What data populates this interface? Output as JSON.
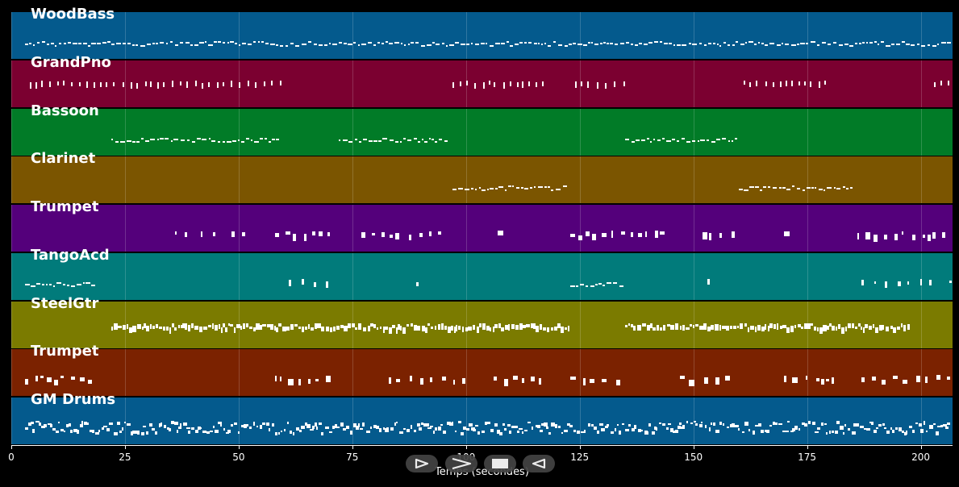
{
  "tracks": [
    {
      "name": "WoodBass",
      "color": "#045a8d"
    },
    {
      "name": "GrandPno",
      "color": "#7b0030"
    },
    {
      "name": "Bassoon",
      "color": "#017b27"
    },
    {
      "name": "Clarinet",
      "color": "#7b5500"
    },
    {
      "name": "Trumpet",
      "color": "#54007b"
    },
    {
      "name": "TangoAcd",
      "color": "#017b7b"
    },
    {
      "name": "SteelGtr",
      "color": "#7b7b00"
    },
    {
      "name": "Trumpet",
      "color": "#7b2200"
    },
    {
      "name": "GM Drums",
      "color": "#045a8d"
    }
  ],
  "axis": {
    "min": 0,
    "max": 207,
    "ticks": [
      {
        "value": 0,
        "label": "0"
      },
      {
        "value": 25,
        "label": "25"
      },
      {
        "value": 50,
        "label": "50"
      },
      {
        "value": 75,
        "label": "75"
      },
      {
        "value": 100,
        "label": "100"
      },
      {
        "value": 125,
        "label": "125"
      },
      {
        "value": 150,
        "label": "150"
      },
      {
        "value": 175,
        "label": "175"
      },
      {
        "value": 200,
        "label": "200"
      }
    ],
    "xlabel": "Temps (secondes)"
  },
  "transport": [
    {
      "name": "play-icon"
    },
    {
      "name": "fast-forward-icon"
    },
    {
      "name": "stop-icon"
    },
    {
      "name": "rewind-icon"
    }
  ]
}
